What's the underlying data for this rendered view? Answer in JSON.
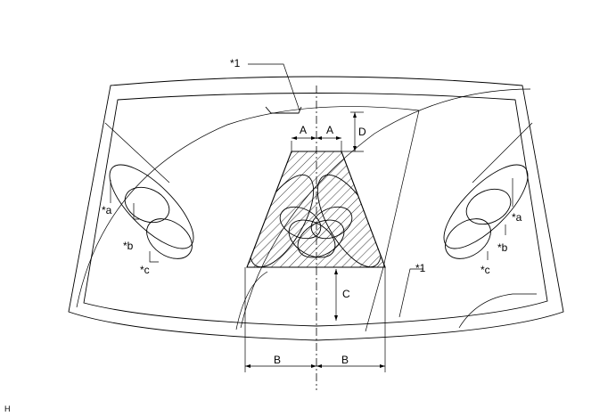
{
  "callouts": {
    "glass_top": "*1",
    "glass_right": "*1",
    "left_a": "*a",
    "left_b": "*b",
    "left_c": "*c",
    "right_a": "*a",
    "right_b": "*b",
    "right_c": "*c"
  },
  "dimensions": {
    "a_left": "A",
    "a_right": "A",
    "d": "D",
    "c": "C",
    "b_left": "B",
    "b_right": "B"
  },
  "figure_code": "H",
  "colors": {
    "line": "#000000",
    "background": "#ffffff"
  }
}
